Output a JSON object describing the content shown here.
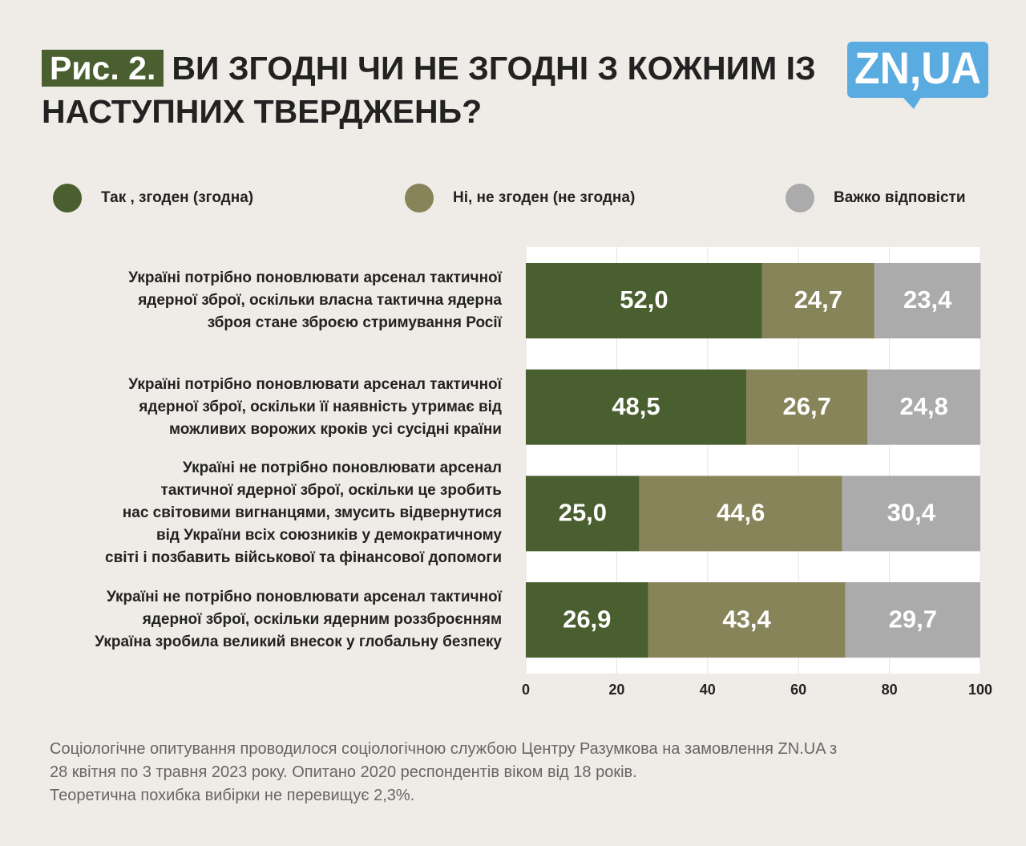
{
  "chart_data": {
    "type": "stacked_barh",
    "figure_label": "Рис. 2.",
    "title": "ВИ ЗГОДНІ ЧИ НЕ ЗГОДНІ З КОЖНИМ ІЗ НАСТУПНИХ ТВЕРДЖЕНЬ?",
    "logo": "ZN,UA",
    "categories": [
      "Україні потрібно поновлювати арсенал тактичної\nядерної зброї, оскільки власна тактична ядерна\nзброя стане зброєю стримування Росії",
      "Україні потрібно поновлювати арсенал тактичної\nядерної зброї, оскільки її наявність утримає від\nможливих ворожих кроків усі сусідні країни",
      "Україні не потрібно поновлювати арсенал\nтактичної ядерної зброї, оскільки це зробить\nнас світовими вигнанцями, змусить відвернутися\nвід України всіх союзників у демократичному\nсвіті і позбавить військової та фінансової допомоги",
      "Україні не потрібно поновлювати арсенал тактичної\nядерної зброї, оскільки ядерним роззброєнням\nУкраїна зробила великий внесок у глобальну безпеку"
    ],
    "series": [
      {
        "name": "Так , згоден (згодна)",
        "color": "#4a5f2f",
        "values": [
          52.0,
          48.5,
          25.0,
          26.9
        ],
        "value_labels": [
          "52,0",
          "48,5",
          "25,0",
          "26,9"
        ]
      },
      {
        "name": "Ні, не згоден (не згодна)",
        "color": "#87845a",
        "values": [
          24.7,
          26.7,
          44.6,
          43.4
        ],
        "value_labels": [
          "24,7",
          "26,7",
          "44,6",
          "43,4"
        ]
      },
      {
        "name": "Важко відповісти",
        "color": "#ababab",
        "values": [
          23.4,
          24.8,
          30.4,
          29.7
        ],
        "value_labels": [
          "23,4",
          "24,8",
          "30,4",
          "29,7"
        ]
      }
    ],
    "xlim": [
      0,
      100
    ],
    "xticks": [
      0,
      20,
      40,
      60,
      80,
      100
    ],
    "grid": true,
    "note": "Соціологічне опитування проводилося соціологічною службою Центру Разумкова на замовлення ZN.UA з\n28 квітня по 3 травня 2023 року. Опитано 2020 респондентів віком від 18 років.\nТеоретична похибка вибірки не перевищує 2,3%."
  }
}
